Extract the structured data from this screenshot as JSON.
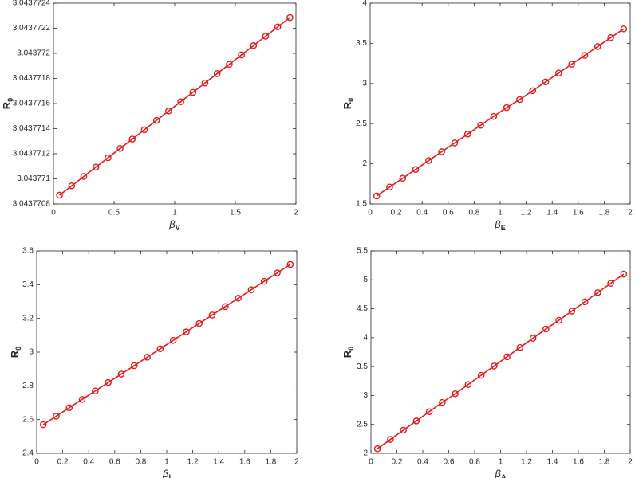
{
  "chart_data": [
    {
      "type": "line",
      "xlabel": "β",
      "xlabel_sub": "V",
      "ylabel": "R",
      "ylabel_sub": "0",
      "x": [
        0.05,
        0.15,
        0.25,
        0.35,
        0.45,
        0.55,
        0.65,
        0.75,
        0.85,
        0.95,
        1.05,
        1.15,
        1.25,
        1.35,
        1.45,
        1.55,
        1.65,
        1.75,
        1.85,
        1.95
      ],
      "series": [
        {
          "color": "#e41a1c",
          "values": [
            3.04377087,
            3.0437709445,
            3.043771019,
            3.0437710935,
            3.043771168,
            3.0437712425,
            3.043771317,
            3.0437713915,
            3.043771466,
            3.0437715405,
            3.043771615,
            3.0437716895,
            3.043771764,
            3.0437718385,
            3.043771913,
            3.0437719875,
            3.043772062,
            3.0437721365,
            3.043772211,
            3.0437722855
          ]
        }
      ],
      "xlim": [
        0,
        2
      ],
      "xticks": [
        0,
        0.5,
        1,
        1.5,
        2
      ],
      "ylim": [
        3.0437708,
        3.0437724
      ],
      "yticks": [
        3.0437708,
        3.043771,
        3.0437712,
        3.0437714,
        3.0437716,
        3.0437718,
        3.043772,
        3.0437722,
        3.0437724
      ]
    },
    {
      "type": "line",
      "xlabel": "β",
      "xlabel_sub": "E",
      "ylabel": "R",
      "ylabel_sub": "0",
      "x": [
        0.05,
        0.15,
        0.25,
        0.35,
        0.45,
        0.55,
        0.65,
        0.75,
        0.85,
        0.95,
        1.05,
        1.15,
        1.25,
        1.35,
        1.45,
        1.55,
        1.65,
        1.75,
        1.85,
        1.95
      ],
      "series": [
        {
          "color": "#e41a1c",
          "values": [
            1.6,
            1.71,
            1.82,
            1.93,
            2.04,
            2.15,
            2.26,
            2.37,
            2.48,
            2.59,
            2.7,
            2.8,
            2.91,
            3.02,
            3.13,
            3.24,
            3.35,
            3.46,
            3.57,
            3.68
          ]
        }
      ],
      "xlim": [
        0,
        2
      ],
      "xticks": [
        0,
        0.2,
        0.4,
        0.6,
        0.8,
        1,
        1.2,
        1.4,
        1.6,
        1.8,
        2
      ],
      "ylim": [
        1.5,
        4
      ],
      "yticks": [
        1.5,
        2,
        2.5,
        3,
        3.5,
        4
      ]
    },
    {
      "type": "line",
      "xlabel": "β",
      "xlabel_sub": "I",
      "ylabel": "R",
      "ylabel_sub": "0",
      "x": [
        0.05,
        0.15,
        0.25,
        0.35,
        0.45,
        0.55,
        0.65,
        0.75,
        0.85,
        0.95,
        1.05,
        1.15,
        1.25,
        1.35,
        1.45,
        1.55,
        1.65,
        1.75,
        1.85,
        1.95
      ],
      "series": [
        {
          "color": "#e41a1c",
          "values": [
            2.57,
            2.62,
            2.67,
            2.72,
            2.77,
            2.82,
            2.87,
            2.92,
            2.97,
            3.02,
            3.07,
            3.12,
            3.17,
            3.22,
            3.27,
            3.32,
            3.37,
            3.42,
            3.47,
            3.52
          ]
        }
      ],
      "xlim": [
        0,
        2
      ],
      "xticks": [
        0,
        0.2,
        0.4,
        0.6,
        0.8,
        1,
        1.2,
        1.4,
        1.6,
        1.8,
        2
      ],
      "ylim": [
        2.4,
        3.6
      ],
      "yticks": [
        2.4,
        2.6,
        2.8,
        3,
        3.2,
        3.4,
        3.6
      ]
    },
    {
      "type": "line",
      "xlabel": "β",
      "xlabel_sub": "A",
      "ylabel": "R",
      "ylabel_sub": "0",
      "x": [
        0.05,
        0.15,
        0.25,
        0.35,
        0.45,
        0.55,
        0.65,
        0.75,
        0.85,
        0.95,
        1.05,
        1.15,
        1.25,
        1.35,
        1.45,
        1.55,
        1.65,
        1.75,
        1.85,
        1.95
      ],
      "series": [
        {
          "color": "#e41a1c",
          "values": [
            2.08,
            2.24,
            2.4,
            2.56,
            2.72,
            2.88,
            3.03,
            3.19,
            3.35,
            3.51,
            3.67,
            3.83,
            3.99,
            4.15,
            4.3,
            4.46,
            4.62,
            4.78,
            4.94,
            5.1
          ]
        }
      ],
      "xlim": [
        0,
        2
      ],
      "xticks": [
        0,
        0.2,
        0.4,
        0.6,
        0.8,
        1,
        1.2,
        1.4,
        1.6,
        1.8,
        2
      ],
      "ylim": [
        2,
        5.5
      ],
      "yticks": [
        2,
        2.5,
        3,
        3.5,
        4,
        4.5,
        5,
        5.5
      ]
    }
  ]
}
